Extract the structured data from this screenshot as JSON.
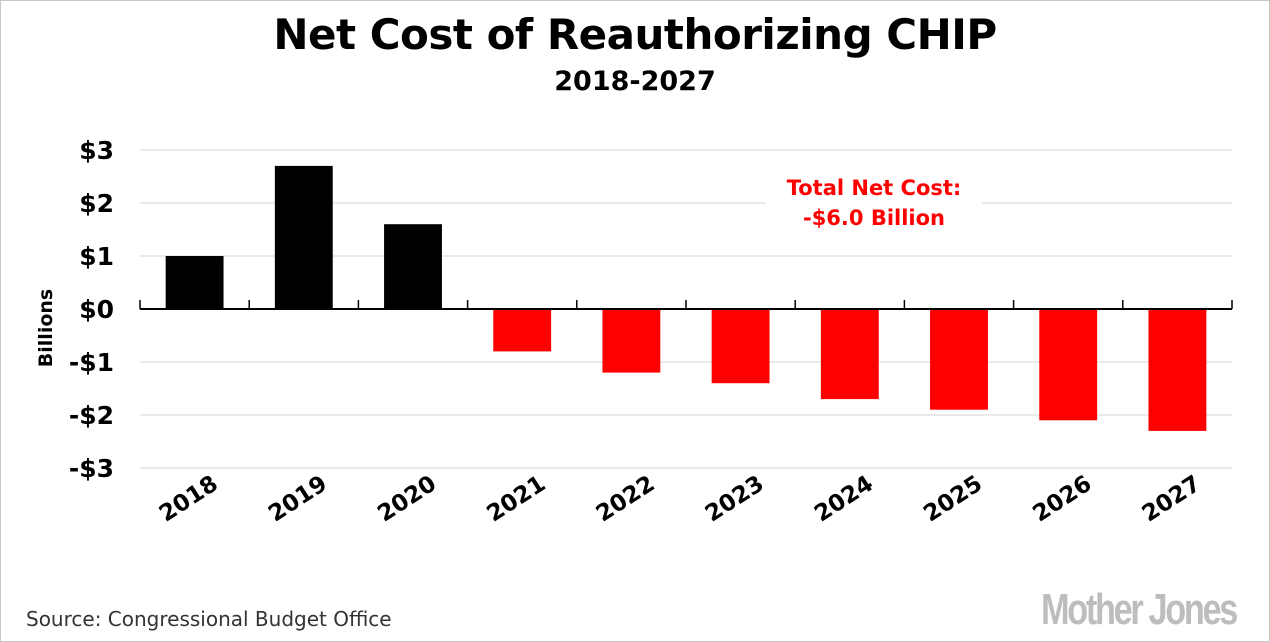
{
  "chart_data": {
    "type": "bar",
    "title": "Net Cost of Reauthorizing CHIP",
    "subtitle": "2018-2027",
    "xlabel": "",
    "ylabel": "Billions",
    "categories": [
      "2018",
      "2019",
      "2020",
      "2021",
      "2022",
      "2023",
      "2024",
      "2025",
      "2026",
      "2027"
    ],
    "values": [
      1.0,
      2.7,
      1.6,
      -0.8,
      -1.2,
      -1.4,
      -1.7,
      -1.9,
      -2.1,
      -2.3
    ],
    "ylim": [
      -3,
      3
    ],
    "yticks": [
      3,
      2,
      1,
      0,
      -1,
      -2,
      -3
    ],
    "ytick_labels": [
      "$3",
      "$2",
      "$1",
      "$0",
      "-$1",
      "-$2",
      "-$3"
    ],
    "grid": true,
    "colors": {
      "positive": "#000000",
      "negative": "#ff0000",
      "grid": "#e3e3e3"
    },
    "annotation": {
      "lines": [
        "Total Net Cost:",
        "-$6.0 Billion"
      ],
      "color": "#ff0000",
      "placement": "upper-right"
    }
  },
  "footer": {
    "source": "Source: Congressional Budget Office",
    "logo": "Mother Jones"
  }
}
